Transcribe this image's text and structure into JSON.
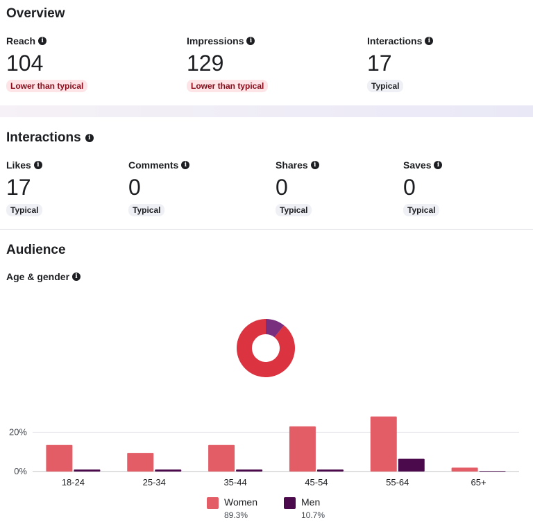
{
  "overview": {
    "title": "Overview",
    "metrics": [
      {
        "label": "Reach",
        "value": "104",
        "badge": "Lower than typical",
        "badge_type": "low"
      },
      {
        "label": "Impressions",
        "value": "129",
        "badge": "Lower than typical",
        "badge_type": "low"
      },
      {
        "label": "Interactions",
        "value": "17",
        "badge": "Typical",
        "badge_type": "typ"
      }
    ]
  },
  "interactions": {
    "title": "Interactions",
    "metrics": [
      {
        "label": "Likes",
        "value": "17",
        "badge": "Typical"
      },
      {
        "label": "Comments",
        "value": "0",
        "badge": "Typical"
      },
      {
        "label": "Shares",
        "value": "0",
        "badge": "Typical"
      },
      {
        "label": "Saves",
        "value": "0",
        "badge": "Typical"
      }
    ]
  },
  "audience": {
    "title": "Audience",
    "subtitle": "Age & gender",
    "info_icon": "info-icon"
  },
  "colors": {
    "women": "#e35d67",
    "men": "#4b0a4b",
    "donut_women": "#dc3341",
    "donut_men": "#7a2e7e",
    "grid": "#e3e4e8"
  },
  "chart_data": [
    {
      "type": "pie",
      "labels": [
        "Women",
        "Men"
      ],
      "values": [
        89.3,
        10.7
      ],
      "donut": true
    },
    {
      "type": "bar",
      "categories": [
        "18-24",
        "25-34",
        "35-44",
        "45-54",
        "55-64",
        "65+"
      ],
      "series": [
        {
          "name": "Women",
          "values": [
            13.5,
            9.5,
            13.5,
            23,
            28,
            2
          ]
        },
        {
          "name": "Men",
          "values": [
            1,
            1,
            1,
            1,
            6.5,
            0.3
          ]
        }
      ],
      "yticks": [
        "0%",
        "20%"
      ],
      "ylim": [
        0,
        30
      ],
      "legend": [
        {
          "name": "Women",
          "pct": "89.3%"
        },
        {
          "name": "Men",
          "pct": "10.7%"
        }
      ]
    }
  ]
}
